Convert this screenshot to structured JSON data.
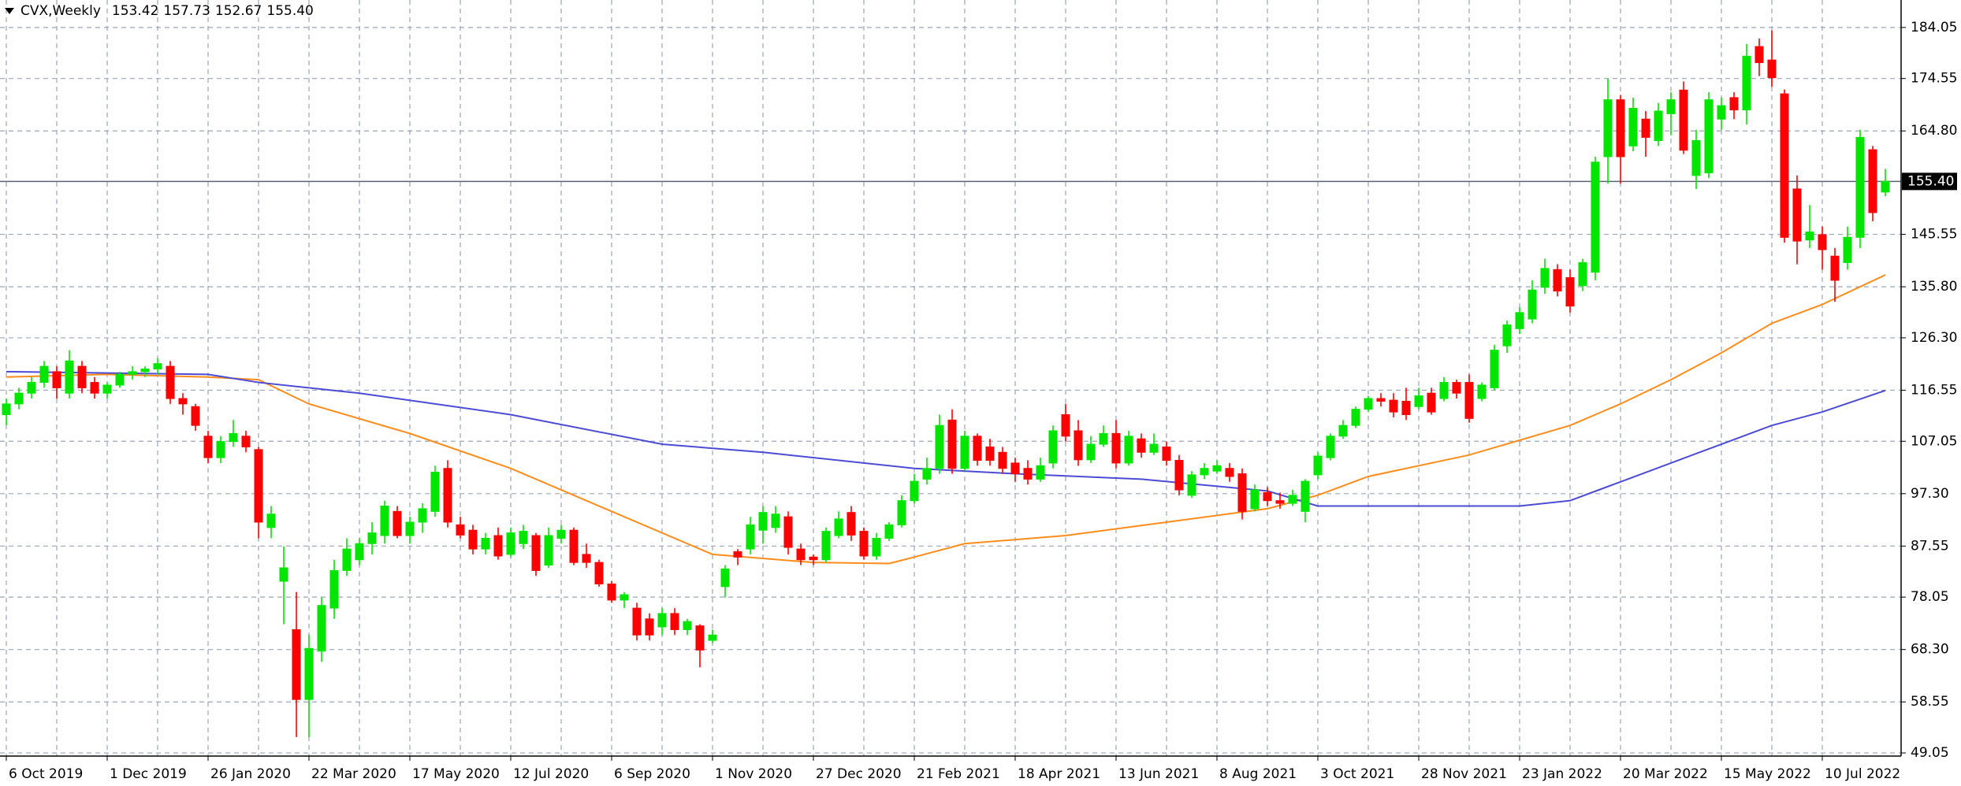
{
  "chart_data": {
    "type": "candlestick",
    "title": "CVX,Weekly",
    "header_values": [
      "153.42",
      "157.73",
      "152.67",
      "155.40"
    ],
    "up_color": "#00e600",
    "down_color": "#ff0000",
    "grid": true,
    "grid_color": "#9aa5b8",
    "ylim": [
      48.47,
      189.16
    ],
    "xlim": [
      -0.5,
      150.25
    ],
    "yticks": [
      184.05,
      174.55,
      {
        "value": 164.8,
        "label": "164.80"
      },
      145.55,
      {
        "value": 135.8,
        "label": "135.80"
      },
      {
        "value": 126.3,
        "label": "126.30"
      },
      116.55,
      107.05,
      {
        "value": 97.3,
        "label": "97.30"
      },
      87.55,
      78.05,
      {
        "value": 68.3,
        "label": "68.30"
      },
      58.55,
      49.05
    ],
    "xticks": [
      {
        "value": 0,
        "label": "6 Oct 2019"
      },
      {
        "value": 8,
        "label": "1 Dec 2019"
      },
      {
        "value": 16,
        "label": "26 Jan 2020"
      },
      {
        "value": 24,
        "label": "22 Mar 2020"
      },
      {
        "value": 32,
        "label": "17 May 2020"
      },
      {
        "value": 40,
        "label": "12 Jul 2020"
      },
      {
        "value": 48,
        "label": "6 Sep 2020"
      },
      {
        "value": 56,
        "label": "1 Nov 2020"
      },
      {
        "value": 64,
        "label": "27 Dec 2020"
      },
      {
        "value": 72,
        "label": "21 Feb 2021"
      },
      {
        "value": 80,
        "label": "18 Apr 2021"
      },
      {
        "value": 88,
        "label": "13 Jun 2021"
      },
      {
        "value": 96,
        "label": "8 Aug 2021"
      },
      {
        "value": 104,
        "label": "3 Oct 2021"
      },
      {
        "value": 112,
        "label": "28 Nov 2021"
      },
      {
        "value": 120,
        "label": "23 Jan 2022"
      },
      {
        "value": 128,
        "label": "20 Mar 2022"
      },
      {
        "value": 136,
        "label": "15 May 2022"
      },
      {
        "value": 144,
        "label": "10 Jul 2022"
      }
    ],
    "last_price": {
      "value": 155.4,
      "label": "155.40",
      "color": "#5a6275"
    },
    "candles": [
      [
        112,
        115,
        110,
        114
      ],
      [
        114,
        117,
        113,
        116
      ],
      [
        116,
        119,
        115,
        118
      ],
      [
        118,
        122,
        117,
        121
      ],
      [
        120,
        121,
        115,
        117
      ],
      [
        116,
        124,
        115,
        122
      ],
      [
        121,
        122,
        116,
        117
      ],
      [
        118,
        119,
        115,
        116
      ],
      [
        116,
        118,
        115,
        117.5
      ],
      [
        117.5,
        120,
        117,
        119.5
      ],
      [
        119.5,
        121,
        118.5,
        120
      ],
      [
        120,
        121,
        119,
        120.5
      ],
      [
        120.5,
        122.5,
        119.5,
        121.5
      ],
      [
        121,
        122,
        114,
        115
      ],
      [
        115,
        116,
        112,
        114
      ],
      [
        113.5,
        114,
        109,
        110
      ],
      [
        108,
        109,
        103,
        104
      ],
      [
        104,
        108,
        103,
        107
      ],
      [
        107,
        111,
        106,
        108.5
      ],
      [
        108,
        109,
        105,
        106
      ],
      [
        105.5,
        106,
        89,
        92
      ],
      [
        91,
        95,
        89,
        93.5
      ],
      [
        81,
        87.5,
        73,
        83.5
      ],
      [
        72,
        79,
        52,
        59
      ],
      [
        59,
        71,
        52,
        68.5
      ],
      [
        68,
        78,
        66,
        76.5
      ],
      [
        76,
        85,
        74,
        83
      ],
      [
        83,
        89,
        82,
        87
      ],
      [
        85,
        89,
        84,
        88
      ],
      [
        88,
        92,
        86,
        90
      ],
      [
        89.5,
        96,
        88,
        95
      ],
      [
        94,
        95,
        89,
        89.5
      ],
      [
        89.5,
        93,
        88,
        92
      ],
      [
        92,
        95.5,
        90,
        94.5
      ],
      [
        94,
        102.5,
        93,
        101.3
      ],
      [
        102,
        103.5,
        91,
        92
      ],
      [
        91.5,
        93,
        89,
        89.6
      ],
      [
        90.5,
        91.5,
        86,
        87
      ],
      [
        87,
        90,
        86,
        89
      ],
      [
        89.5,
        91,
        85,
        85.7
      ],
      [
        86,
        91,
        85.5,
        90
      ],
      [
        88,
        91.5,
        87,
        90.3
      ],
      [
        89.5,
        90,
        82,
        83
      ],
      [
        84,
        91,
        83.5,
        89.5
      ],
      [
        89,
        91.5,
        88,
        90.5
      ],
      [
        90.5,
        91,
        84,
        84.5
      ],
      [
        86,
        88,
        83.5,
        84.5
      ],
      [
        84.5,
        85,
        80,
        80.5
      ],
      [
        80.5,
        81,
        77,
        77.5
      ],
      [
        77.5,
        79,
        76,
        78.5
      ],
      [
        76,
        77,
        70,
        71
      ],
      [
        74,
        75,
        70,
        71
      ],
      [
        72.5,
        76,
        71,
        75
      ],
      [
        75,
        76,
        71,
        72
      ],
      [
        72,
        74,
        71,
        73.5
      ],
      [
        72.7,
        73,
        65,
        68.2
      ],
      [
        70,
        72,
        69.5,
        71
      ],
      [
        80,
        84,
        78,
        83.3
      ],
      [
        86.5,
        87,
        84,
        85.5
      ],
      [
        87,
        93,
        86,
        91.5
      ],
      [
        90.5,
        95,
        88,
        93.8
      ],
      [
        91,
        95,
        90,
        93.5
      ],
      [
        93,
        94,
        86,
        87.3
      ],
      [
        87,
        88,
        84,
        85
      ],
      [
        85.5,
        86,
        84,
        85
      ],
      [
        85,
        91,
        84.5,
        90.3
      ],
      [
        89.5,
        94,
        89,
        92.6
      ],
      [
        93.8,
        95,
        88.5,
        89.6
      ],
      [
        90.3,
        91,
        85,
        85.7
      ],
      [
        85.7,
        90,
        85,
        89
      ],
      [
        89,
        92,
        88.5,
        91.5
      ],
      [
        91.5,
        97,
        91,
        96
      ],
      [
        96,
        101,
        95.5,
        99.6
      ],
      [
        100,
        104,
        99,
        102
      ],
      [
        102,
        112,
        101,
        110
      ],
      [
        111,
        113,
        101,
        102
      ],
      [
        102,
        109,
        101.5,
        108
      ],
      [
        108,
        108.5,
        102.5,
        103.5
      ],
      [
        106,
        107.5,
        102.5,
        103.5
      ],
      [
        105,
        106,
        101,
        102
      ],
      [
        103,
        104,
        99.5,
        101
      ],
      [
        102,
        103.5,
        99,
        100
      ],
      [
        100,
        104,
        99.5,
        102.5
      ],
      [
        103,
        110,
        102,
        109
      ],
      [
        112,
        114,
        107,
        108
      ],
      [
        109,
        111,
        102.5,
        103.6
      ],
      [
        103.6,
        108,
        103,
        106.5
      ],
      [
        106.5,
        110,
        106,
        108.5
      ],
      [
        108.5,
        111,
        102,
        103
      ],
      [
        103,
        109,
        102.5,
        108
      ],
      [
        107.5,
        108.5,
        104,
        105
      ],
      [
        105,
        108.5,
        104.5,
        106.5
      ],
      [
        106,
        107,
        102.5,
        103.5
      ],
      [
        103.5,
        104.5,
        97,
        98
      ],
      [
        97,
        101.5,
        96.5,
        100.8
      ],
      [
        100.8,
        103,
        100,
        102
      ],
      [
        101.5,
        103.5,
        101,
        102.5
      ],
      [
        102,
        103,
        99.5,
        100.5
      ],
      [
        101,
        102,
        92.5,
        94
      ],
      [
        94.5,
        99,
        94,
        98
      ],
      [
        97.5,
        98.5,
        95,
        96
      ],
      [
        96,
        97.5,
        94.5,
        95.5
      ],
      [
        95.5,
        98,
        95,
        97
      ],
      [
        94,
        100,
        92,
        99.6
      ],
      [
        100.8,
        105,
        100,
        104.3
      ],
      [
        104,
        108.5,
        103.5,
        108
      ],
      [
        108,
        111,
        107.5,
        110
      ],
      [
        110,
        113.5,
        109.5,
        113
      ],
      [
        113,
        115.5,
        112.5,
        115
      ],
      [
        115,
        116,
        113.5,
        114.5
      ],
      [
        114.7,
        116,
        111.5,
        112.5
      ],
      [
        114.5,
        117,
        111,
        112
      ],
      [
        113.5,
        117,
        113,
        115.5
      ],
      [
        116,
        117,
        112,
        112.5
      ],
      [
        115,
        119,
        114.5,
        118
      ],
      [
        118,
        118.5,
        115,
        116
      ],
      [
        118,
        119.5,
        110.5,
        111.3
      ],
      [
        115,
        118,
        114.5,
        117.5
      ],
      [
        117,
        125,
        116.5,
        124
      ],
      [
        124.8,
        129.5,
        123.5,
        128.7
      ],
      [
        128,
        132,
        127,
        131
      ],
      [
        129.8,
        137,
        129,
        135.2
      ],
      [
        135.7,
        141,
        134.5,
        139.2
      ],
      [
        139,
        140,
        134,
        135
      ],
      [
        137.5,
        139,
        131,
        132.2
      ],
      [
        136,
        141,
        135,
        140.3
      ],
      [
        138.5,
        160,
        137,
        159
      ],
      [
        160,
        174.5,
        155,
        170.6
      ],
      [
        170.6,
        171.5,
        155,
        160
      ],
      [
        162,
        171,
        161,
        169
      ],
      [
        167,
        168.5,
        160,
        163.6
      ],
      [
        163,
        170,
        162,
        168.5
      ],
      [
        168,
        172,
        164,
        170.6
      ],
      [
        172.4,
        174,
        160.5,
        161.2
      ],
      [
        156.5,
        165,
        154,
        163
      ],
      [
        157,
        172,
        156,
        170.6
      ],
      [
        167,
        171,
        165,
        169.5
      ],
      [
        171,
        172,
        167,
        168.7
      ],
      [
        168.7,
        181,
        166,
        178.7
      ],
      [
        180.5,
        182,
        175,
        177.5
      ],
      [
        178,
        183.5,
        173,
        174.7
      ],
      [
        171.7,
        172.5,
        144,
        145
      ],
      [
        154,
        156.5,
        140,
        144.3
      ],
      [
        144.5,
        151,
        143,
        146
      ],
      [
        145.5,
        147,
        139,
        142.7
      ],
      [
        141.5,
        143,
        133,
        137
      ],
      [
        140.3,
        147,
        139,
        145
      ],
      [
        145,
        165,
        143,
        163.6
      ],
      [
        161.3,
        162,
        148,
        149.6
      ],
      [
        153.42,
        157.73,
        152.67,
        155.4
      ]
    ],
    "moving_averages": [
      {
        "color": "#ff8c1a",
        "x": [
          0,
          8,
          16,
          20,
          24,
          32,
          40,
          48,
          56,
          64,
          70,
          72,
          76,
          84,
          92,
          100,
          104,
          108,
          116,
          124,
          128,
          132,
          136,
          140,
          144,
          149
        ],
        "values": [
          119,
          119.5,
          119,
          118.5,
          114,
          108.5,
          102,
          94,
          86,
          84.5,
          84.3,
          85.5,
          88,
          89.5,
          92,
          94.5,
          97,
          100.5,
          104.5,
          110,
          114,
          118.5,
          123.5,
          129,
          132.5,
          138
        ]
      },
      {
        "color": "#4b4bd6",
        "x": [
          0,
          16,
          20,
          28,
          40,
          52,
          60,
          72,
          80,
          90,
          100,
          104,
          112,
          120,
          124,
          128,
          132,
          136,
          140,
          144,
          149
        ],
        "values": [
          120,
          119.5,
          118,
          116,
          112,
          106.5,
          105,
          102,
          101,
          100,
          97.8,
          95,
          95,
          95,
          96,
          99.5,
          103,
          106.5,
          110,
          112.5,
          116.5
        ]
      }
    ]
  }
}
